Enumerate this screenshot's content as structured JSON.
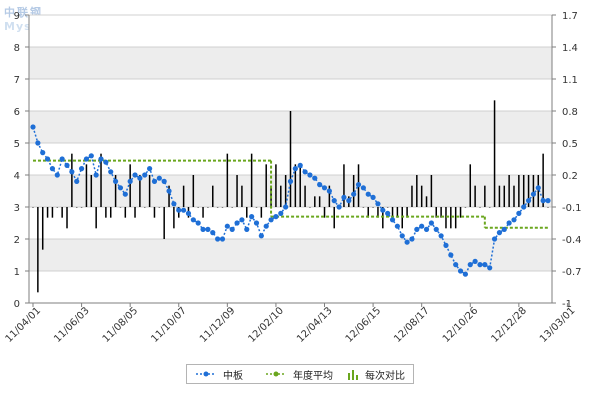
{
  "watermark": {
    "cn": "中联钢",
    "latin": "Mysteel.com"
  },
  "legend": [
    {
      "key": "series0",
      "label": "中板",
      "icon": "line-marker-icon"
    },
    {
      "key": "series1",
      "label": "年度平均",
      "icon": "line-marker-icon"
    },
    {
      "key": "bars",
      "label": "每次对比",
      "icon": "bar-chart-icon"
    }
  ],
  "colors": {
    "series0": "#1f6fd6",
    "series1": "#6aa61e",
    "bars": "#000000",
    "grid_band": "#ededed",
    "axis": "#7f7f7f"
  },
  "chart_data": {
    "type": "line",
    "xlabel": "",
    "ylabel": "",
    "ylim": [
      0,
      9
    ],
    "y_ticks": [
      "0",
      "1",
      "2",
      "3",
      "4",
      "5",
      "6",
      "7",
      "8",
      "9"
    ],
    "y2lim": [
      -1,
      1.7
    ],
    "y2_ticks": [
      "-1",
      "-0.7",
      "-0.4",
      "-0.1",
      "0.2",
      "0.5",
      "0.8",
      "1.1",
      "1.4",
      "1.7"
    ],
    "x_tick_labels": [
      "11/04/01",
      "11/06/03",
      "11/08/05",
      "11/10/07",
      "11/12/09",
      "12/02/10",
      "12/04/13",
      "12/06/15",
      "12/08/17",
      "12/10/26",
      "12/12/28",
      "13/03/01"
    ],
    "x_tick_index": [
      0,
      10,
      20,
      30,
      40,
      50,
      60,
      70,
      80,
      90,
      100,
      110
    ],
    "grid": true,
    "legend_position": "bottom",
    "series": [
      {
        "name": "中板",
        "axis": "left",
        "values": [
          5.5,
          5.0,
          4.7,
          4.5,
          4.2,
          4.0,
          4.5,
          4.3,
          4.1,
          3.8,
          4.2,
          4.5,
          4.6,
          4.0,
          4.5,
          4.4,
          4.1,
          3.8,
          3.6,
          3.4,
          3.8,
          4.0,
          3.9,
          4.0,
          4.2,
          3.8,
          3.9,
          3.8,
          3.5,
          3.1,
          2.9,
          2.9,
          2.8,
          2.6,
          2.5,
          2.3,
          2.3,
          2.2,
          2.0,
          2.0,
          2.4,
          2.3,
          2.5,
          2.6,
          2.3,
          2.7,
          2.5,
          2.1,
          2.4,
          2.6,
          2.7,
          2.8,
          3.0,
          3.8,
          4.2,
          4.3,
          4.1,
          4.0,
          3.9,
          3.7,
          3.6,
          3.5,
          3.2,
          3.0,
          3.3,
          3.2,
          3.4,
          3.7,
          3.6,
          3.4,
          3.3,
          3.1,
          2.9,
          2.8,
          2.6,
          2.4,
          2.1,
          1.9,
          2.0,
          2.3,
          2.4,
          2.3,
          2.5,
          2.3,
          2.1,
          1.8,
          1.5,
          1.2,
          1.0,
          0.9,
          1.2,
          1.3,
          1.2,
          1.2,
          1.1,
          2.0,
          2.2,
          2.3,
          2.5,
          2.6,
          2.8,
          3.0,
          3.2,
          3.4,
          3.6,
          3.2,
          3.2
        ]
      },
      {
        "name": "年度平均",
        "axis": "left",
        "segments": [
          {
            "from": 0,
            "to": 49,
            "value": 4.45
          },
          {
            "from": 49,
            "to": 93,
            "value": 2.7
          },
          {
            "from": 93,
            "to": 106,
            "value": 2.35
          }
        ]
      },
      {
        "name": "每次对比",
        "axis": "right",
        "type": "bar",
        "baseline": -0.1,
        "values": [
          -0.1,
          -0.9,
          -0.5,
          -0.2,
          -0.2,
          -0.1,
          -0.2,
          -0.3,
          0.4,
          -0.1,
          -0.1,
          0.3,
          0.2,
          -0.3,
          0.4,
          -0.2,
          -0.2,
          0.2,
          -0.1,
          -0.2,
          0.3,
          -0.2,
          0.2,
          -0.1,
          0.2,
          -0.2,
          -0.1,
          -0.4,
          0.1,
          -0.3,
          -0.2,
          0.1,
          -0.2,
          0.2,
          -0.1,
          -0.2,
          -0.1,
          0.1,
          -0.1,
          -0.1,
          0.4,
          -0.1,
          0.2,
          0.1,
          -0.2,
          0.4,
          -0.1,
          -0.2,
          0.3,
          0.1,
          0.3,
          0.1,
          0.2,
          0.8,
          0.3,
          0.3,
          0.1,
          -0.1,
          0.0,
          0.0,
          -0.2,
          0.1,
          -0.3,
          -0.1,
          0.3,
          0.0,
          0.2,
          0.3,
          -0.1,
          -0.2,
          -0.1,
          -0.2,
          -0.3,
          -0.1,
          -0.2,
          -0.2,
          -0.3,
          -0.2,
          0.1,
          0.2,
          0.1,
          0.0,
          0.2,
          -0.2,
          -0.2,
          -0.3,
          -0.3,
          -0.3,
          -0.2,
          -0.1,
          0.3,
          0.1,
          -0.1,
          0.1,
          -0.1,
          0.9,
          0.1,
          0.1,
          0.2,
          0.1,
          0.2,
          0.2,
          0.2,
          0.2,
          0.2,
          0.4,
          -0.1
        ]
      }
    ]
  }
}
